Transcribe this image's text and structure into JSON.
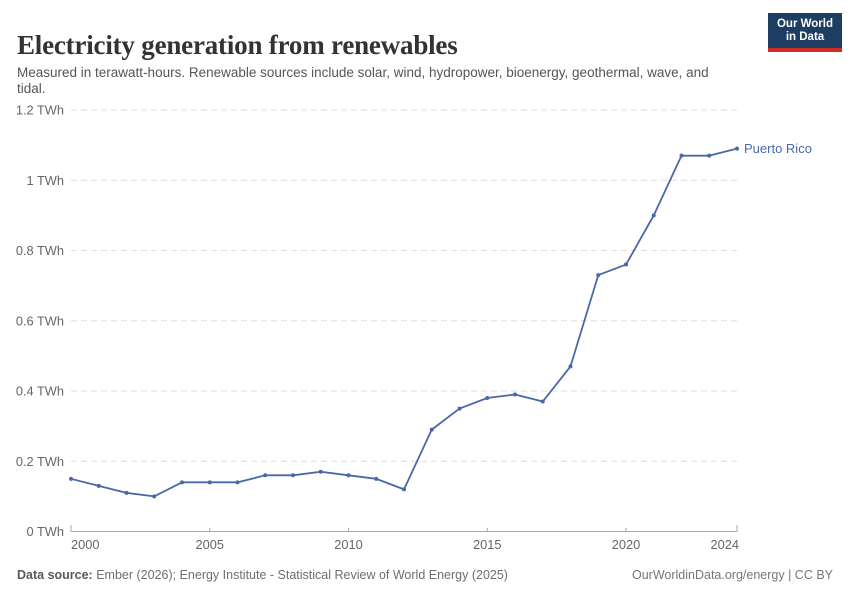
{
  "header": {
    "title": "Electricity generation from renewables",
    "subtitle": "Measured in terawatt-hours. Renewable sources include solar, wind, hydropower, bioenergy, geothermal, wave, and tidal.",
    "logo": {
      "line1": "Our World",
      "line2": "in Data"
    }
  },
  "footer": {
    "source_label": "Data source:",
    "source_text": " Ember (2026); Energy Institute - Statistical Review of World Energy (2025)",
    "right_text": "OurWorldinData.org/energy | CC BY"
  },
  "colors": {
    "line": "#4a68a6",
    "series_label": "#4a68a6",
    "grid": "#dddddd",
    "axis": "#a8a8a8",
    "tick_text": "#666666",
    "logo_bg": "#1d3d63",
    "logo_bar": "#cf2d24",
    "title_text": "#333333",
    "subtitle_text": "#555555"
  },
  "chart_data": {
    "type": "line",
    "title": "Electricity generation from renewables",
    "unit": "TWh",
    "x": [
      2000,
      2001,
      2002,
      2003,
      2004,
      2005,
      2006,
      2007,
      2008,
      2009,
      2010,
      2011,
      2012,
      2013,
      2014,
      2015,
      2016,
      2017,
      2018,
      2019,
      2020,
      2021,
      2022,
      2023,
      2024
    ],
    "series": [
      {
        "name": "Puerto Rico",
        "values": [
          0.15,
          0.13,
          0.11,
          0.1,
          0.14,
          0.14,
          0.14,
          0.16,
          0.16,
          0.17,
          0.16,
          0.15,
          0.12,
          0.29,
          0.35,
          0.38,
          0.39,
          0.37,
          0.47,
          0.73,
          0.76,
          0.9,
          1.07,
          1.07,
          1.09
        ]
      }
    ],
    "xlim": [
      2000,
      2024
    ],
    "ylim": [
      0,
      1.2
    ],
    "x_ticks": [
      2000,
      2005,
      2010,
      2015,
      2020,
      2024
    ],
    "y_ticks": [
      {
        "value": 0,
        "label": "0 TWh"
      },
      {
        "value": 0.2,
        "label": "0.2 TWh"
      },
      {
        "value": 0.4,
        "label": "0.4 TWh"
      },
      {
        "value": 0.6,
        "label": "0.6 TWh"
      },
      {
        "value": 0.8,
        "label": "0.8 TWh"
      },
      {
        "value": 1,
        "label": "1 TWh"
      },
      {
        "value": 1.2,
        "label": "1.2 TWh"
      }
    ],
    "grid": "dashed-horizontal",
    "legend_position": "end-of-line-label"
  }
}
